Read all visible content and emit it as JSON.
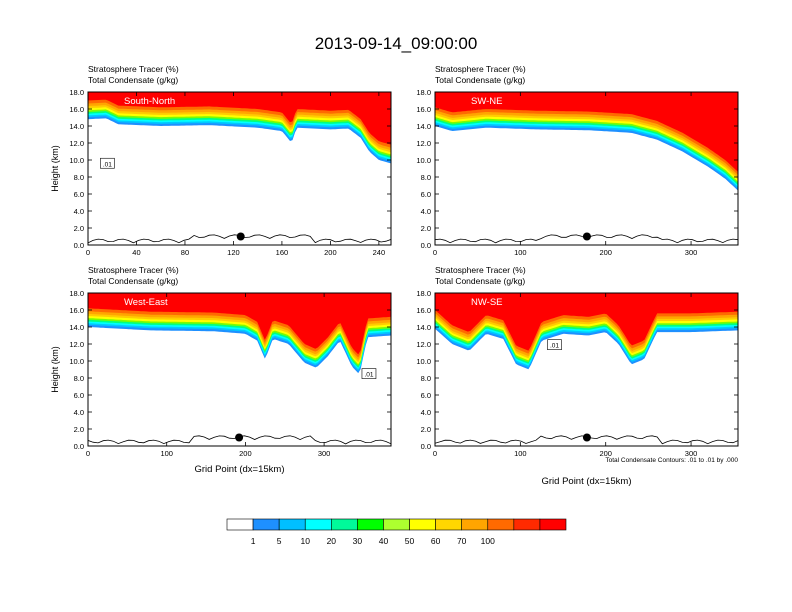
{
  "figure": {
    "title": "2013-09-14_09:00:00",
    "footnote": "Total Condensate Contours: .01 to .01 by .000"
  },
  "colorbar": {
    "labels": [
      "1",
      "5",
      "10",
      "20",
      "30",
      "40",
      "50",
      "60",
      "70",
      "100"
    ],
    "colors": [
      "#ffffff",
      "#1e90ff",
      "#00bfff",
      "#00ffff",
      "#00fa9a",
      "#00ff00",
      "#adff2f",
      "#ffff00",
      "#ffd700",
      "#ffa500",
      "#ff6a00",
      "#ff2a00",
      "#ff0000"
    ]
  },
  "chart_data": [
    {
      "type": "heatmap",
      "panel_label": "South-North",
      "title_line1": "Stratosphere Tracer   (%)",
      "title_line2": "Total Condensate   (g/kg)",
      "ylabel": "Height (km)",
      "xlabel": "",
      "xlim": [
        0,
        250
      ],
      "ylim": [
        0,
        18
      ],
      "xticks": [
        0,
        40,
        80,
        120,
        160,
        200,
        240
      ],
      "yticks": [
        "0.0",
        "2.0",
        "4.0",
        "6.0",
        "8.0",
        "10.0",
        "12.0",
        "14.0",
        "16.0",
        "18.0"
      ],
      "tracer_base_km": [
        [
          0,
          14.8
        ],
        [
          15,
          14.9
        ],
        [
          25,
          14.2
        ],
        [
          60,
          14.0
        ],
        [
          100,
          14.1
        ],
        [
          140,
          13.8
        ],
        [
          160,
          13.4
        ],
        [
          168,
          12.0
        ],
        [
          172,
          13.8
        ],
        [
          200,
          13.6
        ],
        [
          215,
          13.7
        ],
        [
          225,
          12.6
        ],
        [
          232,
          11.0
        ],
        [
          240,
          10.0
        ],
        [
          250,
          9.6
        ]
      ],
      "contour_label": ".01",
      "contour_label_point": [
        16,
        9.5
      ],
      "marker_point": [
        126,
        1.0
      ]
    },
    {
      "type": "heatmap",
      "panel_label": "SW-NE",
      "title_line1": "Stratosphere Tracer   (%)",
      "title_line2": "Total Condensate   (g/kg)",
      "ylabel": "",
      "xlabel": "",
      "xlim": [
        0,
        355
      ],
      "ylim": [
        0,
        18
      ],
      "xticks": [
        0,
        100,
        200,
        300
      ],
      "yticks": [
        "0.0",
        "2.0",
        "4.0",
        "6.0",
        "8.0",
        "10.0",
        "12.0",
        "14.0",
        "16.0",
        "18.0"
      ],
      "tracer_base_km": [
        [
          0,
          14.0
        ],
        [
          20,
          13.4
        ],
        [
          60,
          13.8
        ],
        [
          120,
          13.6
        ],
        [
          180,
          13.5
        ],
        [
          230,
          13.2
        ],
        [
          260,
          12.4
        ],
        [
          290,
          11.0
        ],
        [
          320,
          9.2
        ],
        [
          340,
          7.8
        ],
        [
          355,
          6.4
        ]
      ],
      "contour_label": "",
      "contour_label_point": [
        0,
        0
      ],
      "marker_point": [
        178,
        1.0
      ]
    },
    {
      "type": "heatmap",
      "panel_label": "West-East",
      "title_line1": "Stratosphere Tracer   (%)",
      "title_line2": "Total Condensate   (g/kg)",
      "ylabel": "Height (km)",
      "xlabel": "Grid Point (dx=15km)",
      "xlim": [
        0,
        385
      ],
      "ylim": [
        0,
        18
      ],
      "xticks": [
        0,
        100,
        200,
        300
      ],
      "yticks": [
        "0.0",
        "2.0",
        "4.0",
        "6.0",
        "8.0",
        "10.0",
        "12.0",
        "14.0",
        "16.0",
        "18.0"
      ],
      "tracer_base_km": [
        [
          0,
          14.0
        ],
        [
          80,
          13.6
        ],
        [
          160,
          13.5
        ],
        [
          200,
          13.2
        ],
        [
          215,
          12.4
        ],
        [
          225,
          10.2
        ],
        [
          235,
          12.6
        ],
        [
          255,
          12.0
        ],
        [
          275,
          9.8
        ],
        [
          290,
          9.2
        ],
        [
          305,
          10.6
        ],
        [
          320,
          12.4
        ],
        [
          335,
          9.4
        ],
        [
          345,
          8.4
        ],
        [
          355,
          12.8
        ],
        [
          385,
          13.0
        ]
      ],
      "contour_label": ".01",
      "contour_label_point": [
        357,
        8.4
      ],
      "marker_point": [
        192,
        1.0
      ]
    },
    {
      "type": "heatmap",
      "panel_label": "NW-SE",
      "title_line1": "Stratosphere Tracer   (%)",
      "title_line2": "Total Condensate   (g/kg)",
      "ylabel": "",
      "xlabel": "Grid Point (dx=15km)",
      "xlim": [
        0,
        355
      ],
      "ylim": [
        0,
        18
      ],
      "xticks": [
        0,
        100,
        200,
        300
      ],
      "yticks": [
        "0.0",
        "2.0",
        "4.0",
        "6.0",
        "8.0",
        "10.0",
        "12.0",
        "14.0",
        "16.0",
        "18.0"
      ],
      "tracer_base_km": [
        [
          0,
          13.8
        ],
        [
          20,
          12.0
        ],
        [
          40,
          11.2
        ],
        [
          60,
          13.2
        ],
        [
          80,
          12.6
        ],
        [
          95,
          9.6
        ],
        [
          110,
          9.0
        ],
        [
          125,
          12.4
        ],
        [
          150,
          13.2
        ],
        [
          180,
          13.0
        ],
        [
          200,
          13.4
        ],
        [
          215,
          12.0
        ],
        [
          230,
          9.6
        ],
        [
          245,
          10.2
        ],
        [
          260,
          13.4
        ],
        [
          300,
          13.4
        ],
        [
          355,
          13.6
        ]
      ],
      "contour_label": ".01",
      "contour_label_point": [
        140,
        11.8
      ],
      "marker_point": [
        178,
        1.0
      ]
    }
  ]
}
